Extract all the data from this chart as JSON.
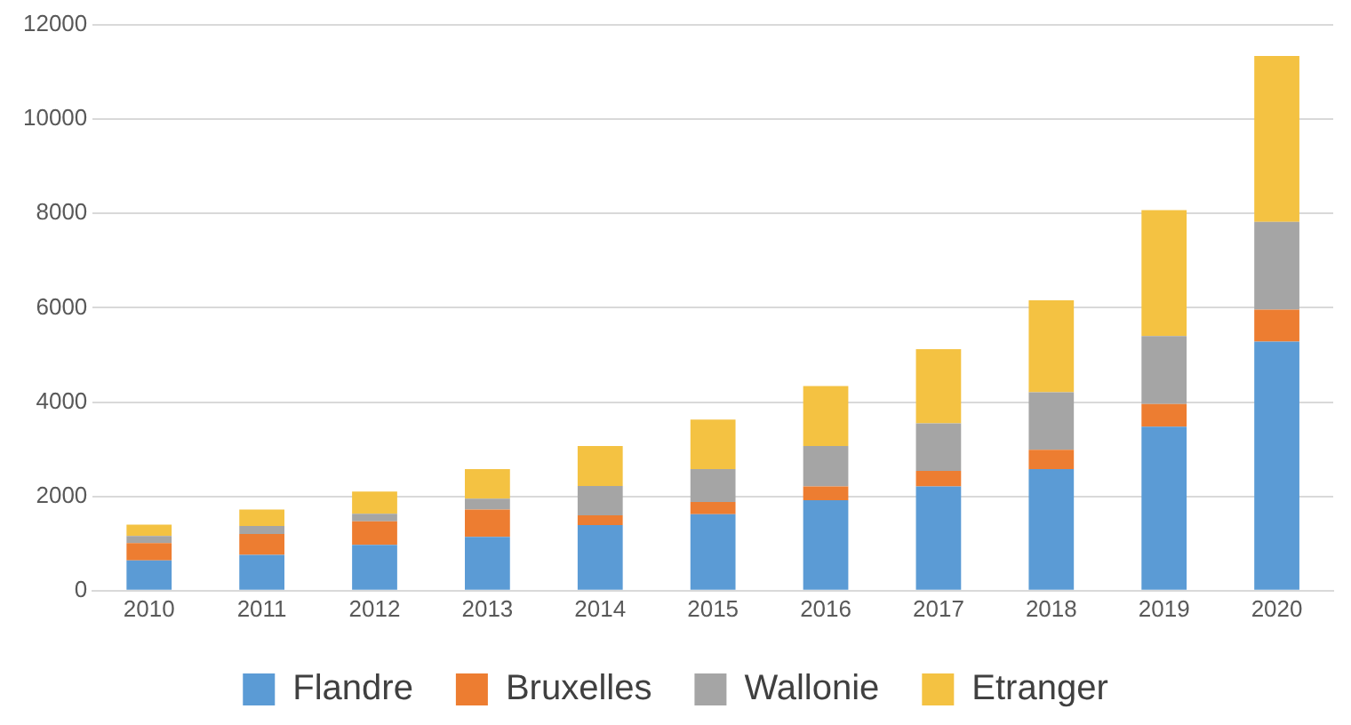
{
  "chart_data": {
    "type": "bar",
    "stacked": true,
    "categories": [
      "2010",
      "2011",
      "2012",
      "2013",
      "2014",
      "2015",
      "2016",
      "2017",
      "2018",
      "2019",
      "2020"
    ],
    "series": [
      {
        "name": "Flandre",
        "color": "#5b9bd5",
        "values": [
          640,
          760,
          970,
          1140,
          1390,
          1620,
          1920,
          2210,
          2580,
          3480,
          5280
        ]
      },
      {
        "name": "Bruxelles",
        "color": "#ed7d31",
        "values": [
          370,
          440,
          500,
          580,
          210,
          260,
          290,
          330,
          410,
          480,
          680
        ]
      },
      {
        "name": "Wallonie",
        "color": "#a5a5a5",
        "values": [
          150,
          170,
          160,
          230,
          620,
          700,
          860,
          1010,
          1220,
          1440,
          1860
        ]
      },
      {
        "name": "Etranger",
        "color": "#f4c242",
        "values": [
          240,
          350,
          470,
          630,
          850,
          1050,
          1270,
          1570,
          1950,
          2670,
          3520
        ]
      }
    ],
    "ylim": [
      0,
      12000
    ],
    "yticks": [
      0,
      2000,
      4000,
      6000,
      8000,
      10000,
      12000
    ],
    "grid": "y",
    "legend": "bottom"
  }
}
